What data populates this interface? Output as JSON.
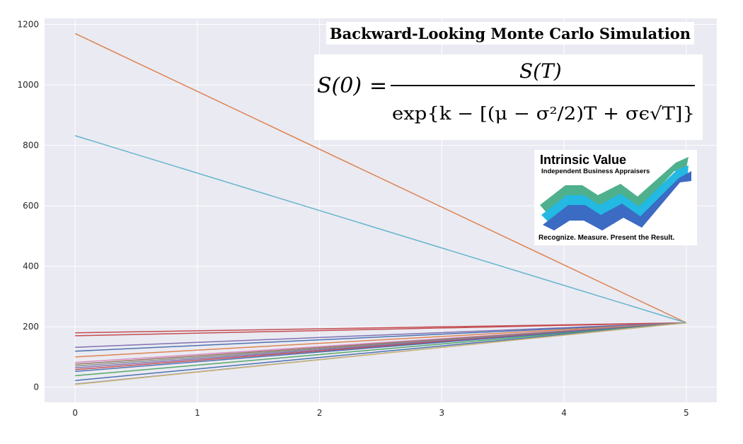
{
  "chart_data": {
    "type": "line",
    "title": "Backward-Looking Monte Carlo Simulation",
    "formula": {
      "lhs": "S(0)",
      "numerator": "S(T)",
      "denominator": "exp{k − [(μ − σ²/2)T + σϵ√T]}"
    },
    "xlim": [
      -0.25,
      5.25
    ],
    "ylim": [
      -50,
      1220
    ],
    "x_ticks": [
      0,
      1,
      2,
      3,
      4,
      5
    ],
    "y_ticks": [
      0,
      200,
      400,
      600,
      800,
      1000,
      1200
    ],
    "grid": true,
    "legend": "none",
    "x": [
      0,
      5
    ],
    "series": [
      {
        "color": "#dd8452",
        "values": [
          1170,
          213
        ]
      },
      {
        "color": "#64b5cd",
        "values": [
          832,
          213
        ]
      },
      {
        "color": "#c44e52",
        "values": [
          180,
          213
        ]
      },
      {
        "color": "#c44e52",
        "values": [
          170,
          213
        ]
      },
      {
        "color": "#8172b3",
        "values": [
          132,
          213
        ]
      },
      {
        "color": "#4c72b0",
        "values": [
          119,
          213
        ]
      },
      {
        "color": "#dd8452",
        "values": [
          100,
          213
        ]
      },
      {
        "color": "#da8bc3",
        "values": [
          82,
          213
        ]
      },
      {
        "color": "#937860",
        "values": [
          76,
          213
        ]
      },
      {
        "color": "#8c8c8c",
        "values": [
          70,
          213
        ]
      },
      {
        "color": "#8172b3",
        "values": [
          64,
          213
        ]
      },
      {
        "color": "#c44e52",
        "values": [
          58,
          213
        ]
      },
      {
        "color": "#4c72b0",
        "values": [
          52,
          213
        ]
      },
      {
        "color": "#55a868",
        "values": [
          38,
          213
        ]
      },
      {
        "color": "#4c72b0",
        "values": [
          22,
          213
        ]
      },
      {
        "color": "#8172b3",
        "values": [
          10,
          213
        ]
      },
      {
        "color": "#ccb974",
        "values": [
          9,
          213
        ]
      }
    ]
  },
  "logo": {
    "name": "Intrinsic Value",
    "subtitle": "Independent Business Appraisers",
    "tagline": "Recognize. Measure. Present the Result.",
    "colors": [
      "#3b6bc2",
      "#23b9e2",
      "#4fb08d"
    ]
  },
  "colors": {
    "plot_bg": "#eaeaf2",
    "grid": "#ffffff",
    "tick_text": "#262626"
  }
}
